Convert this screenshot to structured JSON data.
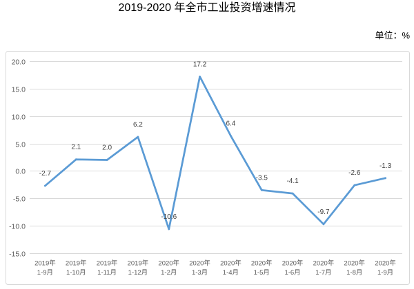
{
  "colors": {
    "series_line": "#5B9BD5",
    "gridline": "#D9D9D9",
    "frame": "#D9D9D9"
  },
  "chart_data": {
    "type": "line",
    "title": "2019-2020 年全市工业投资增速情况",
    "unit_label": "单位：%",
    "categories": [
      "2019年\n1-9月",
      "2019年\n1-10月",
      "2019年\n1-11月",
      "2019年\n1-12月",
      "2020年\n1-2月",
      "2020年\n1-3月",
      "2020年\n1-4月",
      "2020年\n1-5月",
      "2020年\n1-6月",
      "2020年\n1-7月",
      "2020年\n1-8月",
      "2020年\n1-9月"
    ],
    "series": [
      {
        "values": [
          -2.7,
          2.1,
          2.0,
          6.2,
          -10.6,
          17.2,
          6.4,
          -3.5,
          -4.1,
          -9.7,
          -2.6,
          -1.3
        ]
      }
    ],
    "ylim": [
      -15,
      20
    ],
    "yticks": [
      "20.0",
      "15.0",
      "10.0",
      "5.0",
      "0.0",
      "-5.0",
      "-10.0",
      "-15.0"
    ],
    "grid": true,
    "has_legend": false,
    "data_labels": true,
    "markers": false
  }
}
